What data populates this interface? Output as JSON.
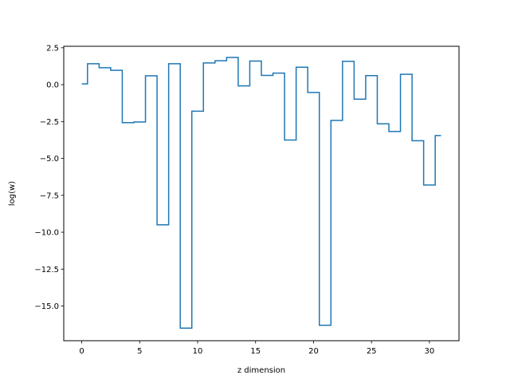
{
  "chart_data": {
    "type": "line",
    "drawstyle": "steps-mid",
    "title": "",
    "xlabel": "z dimension",
    "ylabel": "log(w)",
    "xlim": [
      -1.55,
      32.55
    ],
    "ylim": [
      -17.35,
      2.6
    ],
    "xticks": [
      0,
      5,
      10,
      15,
      20,
      25,
      30
    ],
    "xtick_labels": [
      "0",
      "5",
      "10",
      "15",
      "20",
      "25",
      "30"
    ],
    "yticks": [
      2.5,
      0.0,
      -2.5,
      -5.0,
      -7.5,
      -10.0,
      -12.5,
      -15.0
    ],
    "ytick_labels": [
      "2.5",
      "0.0",
      "−2.5",
      "−5.0",
      "−7.5",
      "−10.0",
      "−12.5",
      "−15.0"
    ],
    "grid": false,
    "line_color": "#1f77b4",
    "series": [
      {
        "x": [
          0,
          1,
          2,
          3,
          4,
          5,
          6,
          7,
          8,
          9,
          10,
          11,
          12,
          13,
          14,
          15,
          16,
          17,
          18,
          19,
          20,
          21,
          22,
          23,
          24,
          25,
          26,
          27,
          28,
          29,
          30,
          31
        ],
        "values": [
          0.05,
          1.42,
          1.15,
          0.97,
          -2.58,
          -2.53,
          0.6,
          -9.5,
          1.42,
          -16.5,
          -1.8,
          1.47,
          1.62,
          1.84,
          -0.08,
          1.6,
          0.63,
          0.78,
          -3.75,
          1.18,
          -0.53,
          -16.3,
          -2.42,
          1.58,
          -0.98,
          0.61,
          -2.65,
          -3.17,
          0.7,
          -3.8,
          -6.8,
          -3.45
        ]
      }
    ]
  }
}
